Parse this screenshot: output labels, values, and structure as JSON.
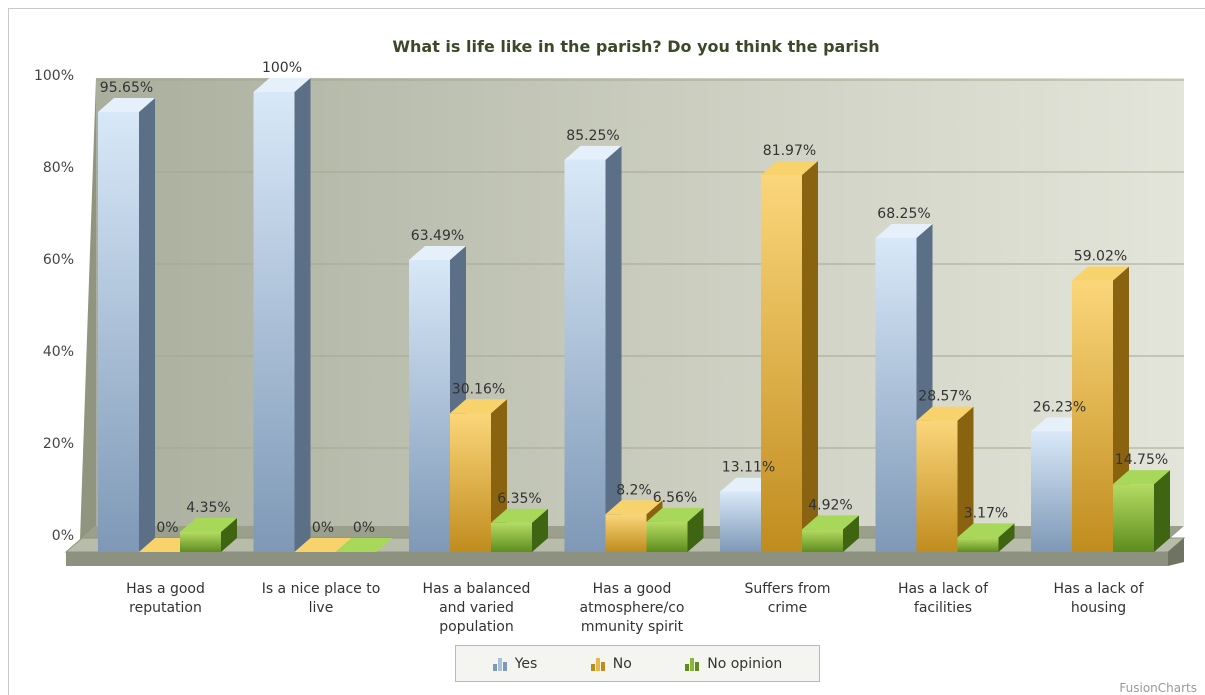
{
  "chart_data": {
    "type": "bar",
    "title": "What is life like in the parish? Do you think the parish",
    "y_ticks": [
      "0%",
      "20%",
      "40%",
      "60%",
      "80%",
      "100%"
    ],
    "ylim": [
      0,
      100
    ],
    "grid": true,
    "legend_position": "bottom",
    "categories": [
      [
        "Has a good",
        "reputation"
      ],
      [
        "Is a nice place to",
        "live"
      ],
      [
        "Has a balanced",
        "and varied",
        "population"
      ],
      [
        "Has a good",
        "atmosphere/co",
        "mmunity spirit"
      ],
      [
        "Suffers from",
        "crime"
      ],
      [
        "Has a lack of",
        "facilities"
      ],
      [
        "Has a lack of",
        "housing"
      ]
    ],
    "series": [
      {
        "name": "Yes",
        "color": "#a9c1de",
        "values": [
          95.65,
          100,
          63.49,
          85.25,
          13.11,
          68.25,
          26.23
        ],
        "labels": [
          "95.65%",
          "100%",
          "63.49%",
          "85.25%",
          "13.11%",
          "68.25%",
          "26.23%"
        ]
      },
      {
        "name": "No",
        "color": "#e8b84a",
        "values": [
          0,
          0,
          30.16,
          8.2,
          81.97,
          28.57,
          59.02
        ],
        "labels": [
          "0%",
          "0%",
          "30.16%",
          "8.2%",
          "81.97%",
          "28.57%",
          "59.02%"
        ]
      },
      {
        "name": "No opinion",
        "color": "#86b83a",
        "values": [
          4.35,
          0,
          6.35,
          6.56,
          4.92,
          3.17,
          14.75
        ],
        "labels": [
          "4.35%",
          "0%",
          "6.35%",
          "6.56%",
          "4.92%",
          "3.17%",
          "14.75%"
        ]
      }
    ]
  },
  "legend": {
    "yes": "Yes",
    "no": "No",
    "no_opinion": "No opinion"
  },
  "credit": "FusionCharts"
}
